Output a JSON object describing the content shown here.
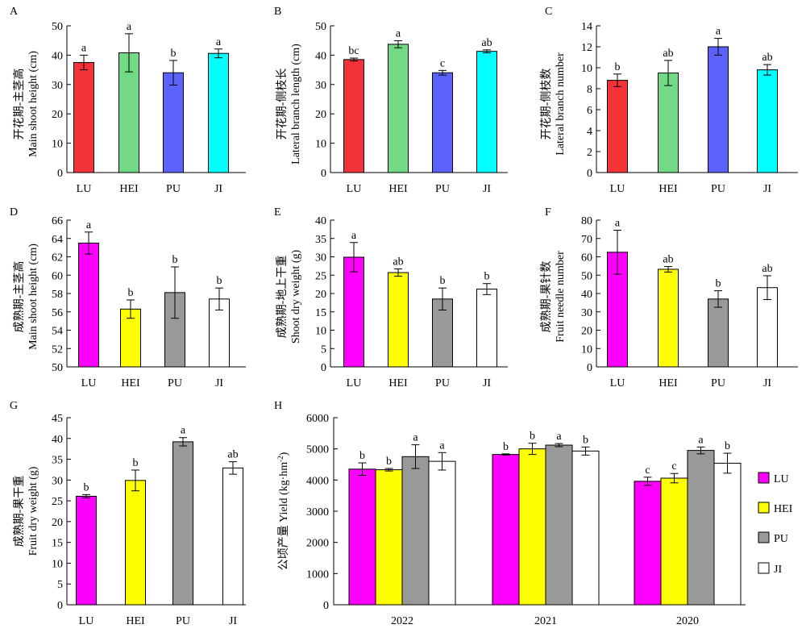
{
  "chart_data": [
    {
      "panel": "A",
      "type": "bar",
      "ylabel_cn": "开花期-主茎高",
      "ylabel_en": "Main shoot height (cm)",
      "categories": [
        "LU",
        "HEI",
        "PU",
        "JI"
      ],
      "values": [
        37.5,
        40.8,
        34.0,
        40.6
      ],
      "errors": [
        2.5,
        6.5,
        4.2,
        1.5
      ],
      "letters": [
        "a",
        "a",
        "b",
        "a"
      ],
      "colors": [
        "#f43338",
        "#72d985",
        "#5b63fb",
        "#00ffff"
      ],
      "ylim": [
        0,
        50
      ],
      "yticks": [
        0,
        10,
        20,
        30,
        40,
        50
      ]
    },
    {
      "panel": "B",
      "type": "bar",
      "ylabel_cn": "开花期-侧枝长",
      "ylabel_en": "Lateral branch length (cm)",
      "categories": [
        "LU",
        "HEI",
        "PU",
        "JI"
      ],
      "values": [
        38.5,
        43.7,
        34.0,
        41.3
      ],
      "errors": [
        0.5,
        1.2,
        0.8,
        0.5
      ],
      "letters": [
        "bc",
        "a",
        "c",
        "ab"
      ],
      "colors": [
        "#f43338",
        "#72d985",
        "#5b63fb",
        "#00ffff"
      ],
      "ylim": [
        0,
        50
      ],
      "yticks": [
        0,
        10,
        20,
        30,
        40,
        50
      ]
    },
    {
      "panel": "C",
      "type": "bar",
      "ylabel_cn": "开花期-侧枝数",
      "ylabel_en": "Lateral branch number",
      "categories": [
        "LU",
        "HEI",
        "PU",
        "JI"
      ],
      "values": [
        8.8,
        9.5,
        12.0,
        9.8
      ],
      "errors": [
        0.6,
        1.2,
        0.8,
        0.5
      ],
      "letters": [
        "b",
        "ab",
        "a",
        "ab"
      ],
      "colors": [
        "#f43338",
        "#72d985",
        "#5b63fb",
        "#00ffff"
      ],
      "ylim": [
        0,
        14
      ],
      "yticks": [
        0,
        2,
        4,
        6,
        8,
        10,
        12,
        14
      ]
    },
    {
      "panel": "D",
      "type": "bar",
      "ylabel_cn": "成熟期-主茎高",
      "ylabel_en": "Main shoot height (cm)",
      "categories": [
        "LU",
        "HEI",
        "PU",
        "JI"
      ],
      "values": [
        63.5,
        56.3,
        58.1,
        57.4
      ],
      "errors": [
        1.2,
        1.0,
        2.8,
        1.2
      ],
      "letters": [
        "a",
        "b",
        "b",
        "b"
      ],
      "colors": [
        "#ff00ff",
        "#ffff00",
        "#999999",
        "#ffffff"
      ],
      "ylim": [
        50,
        66
      ],
      "yticks": [
        50,
        52,
        54,
        56,
        58,
        60,
        62,
        64,
        66
      ]
    },
    {
      "panel": "E",
      "type": "bar",
      "ylabel_cn": "成熟期-地上干重",
      "ylabel_en": "Shoot dry weight (g)",
      "categories": [
        "LU",
        "HEI",
        "PU",
        "JI"
      ],
      "values": [
        29.9,
        25.7,
        18.5,
        21.2
      ],
      "errors": [
        4.0,
        1.0,
        3.0,
        1.5
      ],
      "letters": [
        "a",
        "ab",
        "b",
        "b"
      ],
      "colors": [
        "#ff00ff",
        "#ffff00",
        "#999999",
        "#ffffff"
      ],
      "ylim": [
        0,
        40
      ],
      "yticks": [
        0,
        5,
        10,
        15,
        20,
        25,
        30,
        35,
        40
      ]
    },
    {
      "panel": "F",
      "type": "bar",
      "ylabel_cn": "成熟期-果针数",
      "ylabel_en": "Fruit needle number",
      "categories": [
        "LU",
        "HEI",
        "PU",
        "JI"
      ],
      "values": [
        62.5,
        53.2,
        37.0,
        43.2
      ],
      "errors": [
        12.0,
        1.5,
        4.5,
        6.5
      ],
      "letters": [
        "a",
        "ab",
        "b",
        "ab"
      ],
      "colors": [
        "#ff00ff",
        "#ffff00",
        "#999999",
        "#ffffff"
      ],
      "ylim": [
        0,
        80
      ],
      "yticks": [
        0,
        10,
        20,
        30,
        40,
        50,
        60,
        70,
        80
      ]
    },
    {
      "panel": "G",
      "type": "bar",
      "ylabel_cn": "成熟期-果干重",
      "ylabel_en": "Fruit dry weight (g)",
      "categories": [
        "LU",
        "HEI",
        "PU",
        "JI"
      ],
      "values": [
        26.1,
        29.9,
        39.2,
        32.9
      ],
      "errors": [
        0.4,
        2.5,
        1.0,
        1.5
      ],
      "letters": [
        "b",
        "b",
        "a",
        "ab"
      ],
      "colors": [
        "#ff00ff",
        "#ffff00",
        "#999999",
        "#ffffff"
      ],
      "ylim": [
        0,
        45
      ],
      "yticks": [
        0,
        5,
        10,
        15,
        20,
        25,
        30,
        35,
        40,
        45
      ]
    },
    {
      "panel": "H",
      "type": "bar",
      "ylabel_cn": "公顷产量",
      "ylabel_en": "Yield",
      "ylabel_unit": "(kg·hm",
      "ylabel_sup": "-2",
      "ylabel_tail": ")",
      "categories": [
        "2022",
        "2021",
        "2020"
      ],
      "series": [
        {
          "name": "LU",
          "color": "#ff00ff",
          "values": [
            4350,
            4820,
            3960
          ],
          "errors": [
            200,
            20,
            130
          ],
          "letters": [
            "b",
            "b",
            "c"
          ]
        },
        {
          "name": "HEI",
          "color": "#ffff00",
          "values": [
            4330,
            5000,
            4060
          ],
          "errors": [
            40,
            180,
            150
          ],
          "letters": [
            "b",
            "b",
            "c"
          ]
        },
        {
          "name": "PU",
          "color": "#999999",
          "values": [
            4750,
            5120,
            4950
          ],
          "errors": [
            380,
            50,
            110
          ],
          "letters": [
            "a",
            "a",
            "a"
          ]
        },
        {
          "name": "JI",
          "color": "#ffffff",
          "values": [
            4600,
            4930,
            4540
          ],
          "errors": [
            280,
            130,
            320
          ],
          "letters": [
            "a",
            "b",
            "b"
          ]
        }
      ],
      "ylim": [
        0,
        6000
      ],
      "yticks": [
        0,
        1000,
        2000,
        3000,
        4000,
        5000,
        6000
      ],
      "legend": "right"
    }
  ]
}
